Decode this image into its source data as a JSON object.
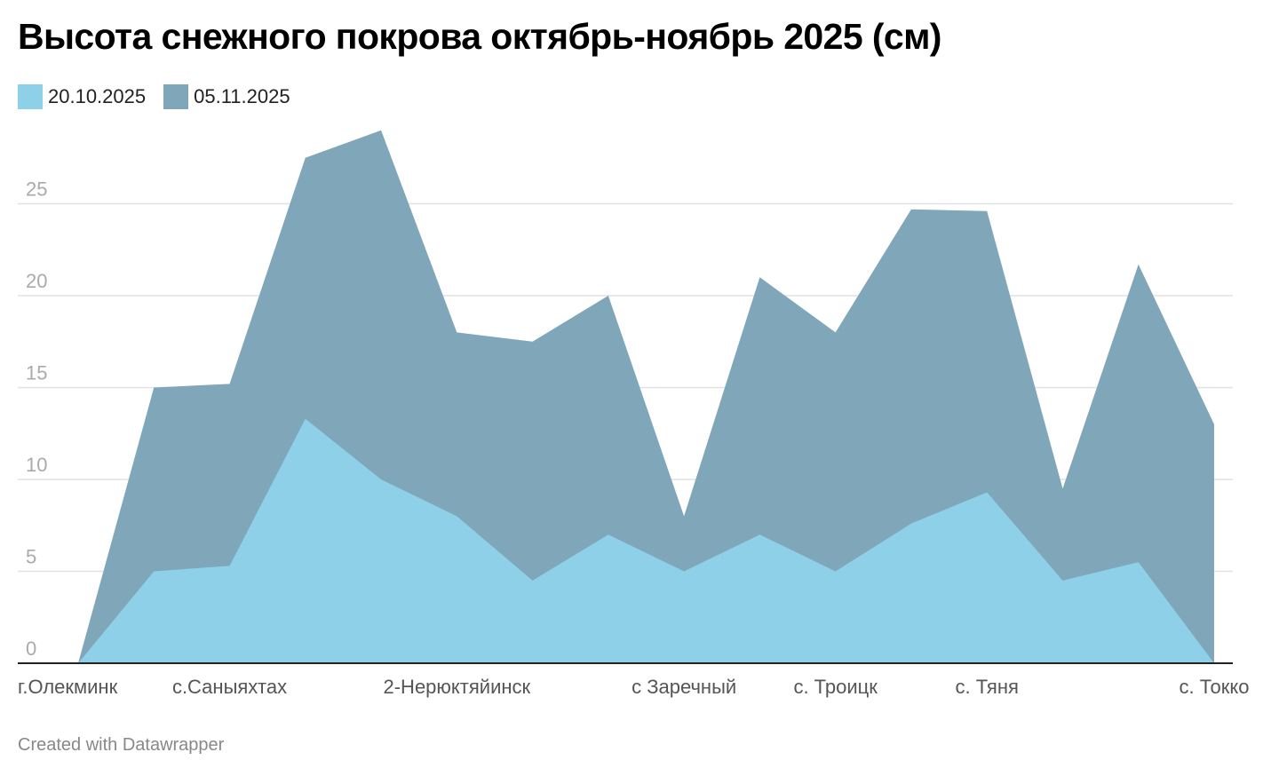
{
  "chart_data": {
    "type": "area",
    "title": "Высота снежного покрова октябрь-ноябрь 2025 (см)",
    "categories": [
      "г.Олекминк",
      "",
      "с.Саныяхтах",
      "",
      "",
      "2-Нерюктяйинск",
      "",
      "",
      "с Заречный",
      "",
      "с. Троицк",
      "",
      "с. Тяня",
      "",
      "",
      "с. Токко"
    ],
    "tick_labels": {
      "0": "г.Олекминк",
      "2": "с.Саныяхтах",
      "5": "2-Нерюктяйинск",
      "8": "с Заречный",
      "10": "с. Троицк",
      "12": "с. Тяня",
      "15": "с. Токко"
    },
    "series": [
      {
        "name": "05.11.2025",
        "color": "#80a6ba",
        "values": [
          0,
          15,
          15.2,
          27.5,
          29,
          18,
          17.5,
          20,
          8,
          21,
          18,
          24.7,
          24.6,
          9.5,
          21.7,
          13
        ]
      },
      {
        "name": "20.10.2025",
        "color": "#8dd0e8",
        "values": [
          0,
          5,
          5.3,
          13.3,
          10,
          8,
          4.5,
          7,
          5,
          7,
          5,
          7.6,
          9.3,
          4.5,
          5.5,
          0
        ]
      }
    ],
    "ylim": [
      0,
      30
    ],
    "yticks": [
      0,
      5,
      10,
      15,
      20,
      25
    ],
    "grid": true,
    "legend_position": "top-left",
    "xlabel": "",
    "ylabel": ""
  },
  "legend": {
    "items": [
      {
        "label": "20.10.2025",
        "color": "#8dd0e8"
      },
      {
        "label": "05.11.2025",
        "color": "#80a6ba"
      }
    ]
  },
  "footer": "Created with Datawrapper"
}
